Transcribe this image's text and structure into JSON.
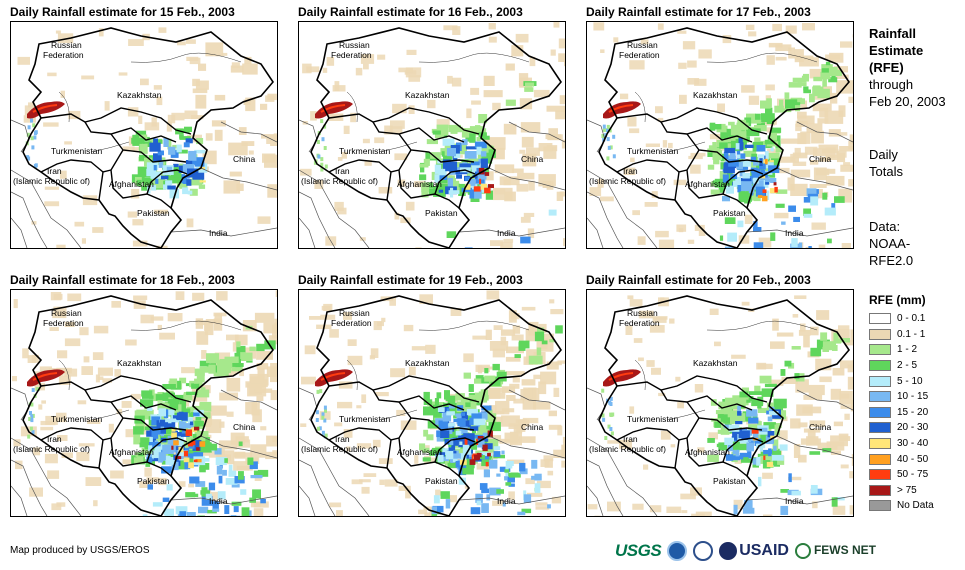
{
  "panels": [
    {
      "title": "Daily Rainfall estimate for 15 Feb., 2003",
      "intensity": 0.7,
      "east": 0.1,
      "south": 0.0,
      "north": 0.0
    },
    {
      "title": "Daily Rainfall estimate for 16 Feb., 2003",
      "intensity": 0.9,
      "east": 0.2,
      "south": 0.1,
      "north": 0.1
    },
    {
      "title": "Daily Rainfall estimate for 17 Feb., 2003",
      "intensity": 1.0,
      "east": 0.5,
      "south": 0.5,
      "north": 0.9
    },
    {
      "title": "Daily Rainfall estimate for 18 Feb., 2003",
      "intensity": 1.3,
      "east": 0.6,
      "south": 1.0,
      "north": 0.8
    },
    {
      "title": "Daily Rainfall estimate for 19 Feb., 2003",
      "intensity": 1.2,
      "east": 0.5,
      "south": 0.9,
      "north": 0.5
    },
    {
      "title": "Daily Rainfall estimate for 20 Feb., 2003",
      "intensity": 0.8,
      "east": 0.4,
      "south": 0.3,
      "north": 0.4
    }
  ],
  "map_labels": {
    "russia_1": "Russian",
    "russia_2": "Federation",
    "kazakhstan": "Kazakhstan",
    "turkmenistan": "Turkmenistan",
    "china": "China",
    "iran_1": "Iran",
    "iran_2": "(Islamic Republic of)",
    "afghanistan": "Afghanistan",
    "pakistan": "Pakistan",
    "india": "India"
  },
  "sidebar": {
    "title_1": "Rainfall",
    "title_2": "Estimate",
    "title_3": "(RFE)",
    "through_1": "through",
    "through_2": "Feb 20, 2003",
    "totals_1": "Daily",
    "totals_2": "Totals",
    "data_1": "Data:",
    "data_2": "NOAA-",
    "data_3": "RFE2.0"
  },
  "legend": {
    "title": "RFE (mm)",
    "items": [
      {
        "label": "0 - 0.1",
        "color": "#ffffff"
      },
      {
        "label": "0.1 - 1",
        "color": "#ecd8b4"
      },
      {
        "label": "1 - 2",
        "color": "#a6e88c"
      },
      {
        "label": "2 - 5",
        "color": "#5fd65c"
      },
      {
        "label": "5 - 10",
        "color": "#b4ecfa"
      },
      {
        "label": "10 - 15",
        "color": "#78b8f2"
      },
      {
        "label": "15 - 20",
        "color": "#3c8ceb"
      },
      {
        "label": "20 - 30",
        "color": "#2060d0"
      },
      {
        "label": "30 - 40",
        "color": "#ffe678"
      },
      {
        "label": "40 - 50",
        "color": "#ffa020"
      },
      {
        "label": "50 - 75",
        "color": "#ff3c10"
      },
      {
        "label": "> 75",
        "color": "#a81818"
      },
      {
        "label": "No Data",
        "color": "#999999"
      }
    ]
  },
  "credit": "Map produced by USGS/EROS",
  "logos": {
    "usgs": "USGS",
    "usaid": "USAID",
    "fews": "FEWS NET"
  }
}
